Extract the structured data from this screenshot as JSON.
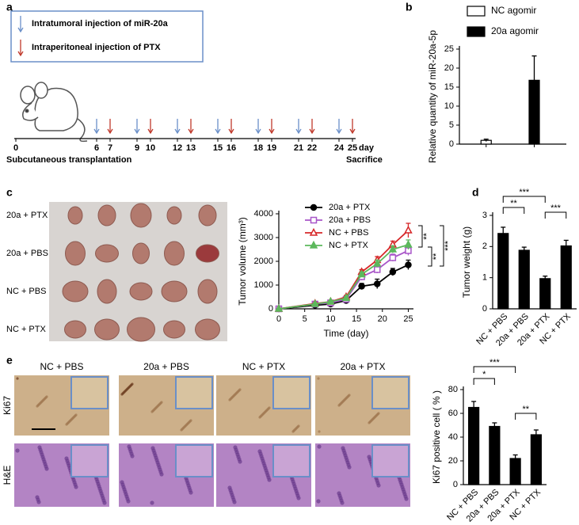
{
  "panel_labels": [
    "a",
    "b",
    "c",
    "d",
    "e"
  ],
  "timeline": {
    "legend": [
      "Intratumoral injection of miR-20a",
      "Intraperitoneal injection of PTX"
    ],
    "days": [
      0,
      6,
      7,
      9,
      10,
      12,
      13,
      15,
      16,
      18,
      19,
      21,
      22,
      24,
      25
    ],
    "unit": "day",
    "start_label": "Subcutaneous transplantation",
    "end_label": "Sacrifice",
    "mir20a_days": [
      6,
      9,
      12,
      15,
      18,
      21,
      24
    ],
    "ptx_days": [
      7,
      10,
      13,
      16,
      19,
      22,
      25
    ],
    "mir20a_color": "#6a8fc8",
    "ptx_color": "#c0392b"
  },
  "tumor_photo": {
    "rows": [
      "20a + PTX",
      "20a + PBS",
      "NC + PBS",
      "NC + PTX"
    ]
  },
  "histology": {
    "columns": [
      "NC + PBS",
      "20a + PBS",
      "NC + PTX",
      "20a + PTX"
    ],
    "rows": [
      "Ki67",
      "H&E"
    ]
  },
  "chart_data": [
    {
      "type": "bar",
      "ylabel": "Relative quantity of miR-20a-5p",
      "categories": [
        null
      ],
      "series": [
        {
          "name": "NC agomir",
          "color": "#ffffff",
          "values": [
            1.0
          ],
          "errors": [
            0.3
          ]
        },
        {
          "name": "20a agomir",
          "color": "#000000",
          "values": [
            16.8
          ],
          "errors": [
            6.4
          ]
        }
      ],
      "ylim": [
        0,
        25
      ],
      "yticks": [
        0,
        5,
        10,
        15,
        20,
        25
      ],
      "legend": "top"
    },
    {
      "type": "line",
      "xlabel": "Time (day)",
      "ylabel": "Tumor volume (mm³)",
      "x": [
        0,
        7,
        10,
        13,
        16,
        19,
        22,
        25
      ],
      "series": [
        {
          "name": "20a + PTX",
          "color": "#000000",
          "marker": "circle",
          "values": [
            0,
            150,
            200,
            350,
            950,
            1050,
            1550,
            1850
          ],
          "errors": [
            0,
            40,
            50,
            60,
            120,
            200,
            150,
            200
          ]
        },
        {
          "name": "20a + PBS",
          "color": "#a855c8",
          "marker": "square-open",
          "values": [
            0,
            200,
            250,
            400,
            1350,
            1650,
            2150,
            2450
          ],
          "errors": [
            0,
            40,
            50,
            60,
            150,
            150,
            150,
            200
          ]
        },
        {
          "name": "NC + PBS",
          "color": "#d62728",
          "marker": "triangle-open",
          "values": [
            0,
            220,
            300,
            500,
            1550,
            2050,
            2700,
            3300
          ],
          "errors": [
            0,
            40,
            50,
            60,
            100,
            150,
            150,
            300
          ]
        },
        {
          "name": "NC + PTX",
          "color": "#5cb85c",
          "marker": "triangle",
          "values": [
            0,
            200,
            300,
            450,
            1450,
            1900,
            2500,
            2700
          ],
          "errors": [
            0,
            40,
            50,
            60,
            100,
            150,
            150,
            200
          ]
        }
      ],
      "xlim": [
        0,
        26
      ],
      "xticks": [
        0,
        5,
        10,
        15,
        20,
        25
      ],
      "ylim": [
        0,
        4000
      ],
      "yticks": [
        0,
        1000,
        2000,
        3000,
        4000
      ],
      "annotations": [
        "**",
        "**",
        "***"
      ]
    },
    {
      "type": "bar",
      "ylabel": "Tumor weight (g)",
      "categories": [
        "NC + PBS",
        "20a + PBS",
        "20a + PTX",
        "NC + PTX"
      ],
      "values": [
        2.42,
        1.88,
        0.97,
        2.02
      ],
      "errors": [
        0.2,
        0.1,
        0.08,
        0.18
      ],
      "color": "#000000",
      "ylim": [
        0,
        3
      ],
      "yticks": [
        0,
        1,
        2,
        3
      ],
      "annotations": [
        "**",
        "***",
        "***"
      ]
    },
    {
      "type": "bar",
      "ylabel": "Ki67 positive cell ( % )",
      "categories": [
        "NC + PBS",
        "20a + PBS",
        "20a + PTX",
        "NC + PTX"
      ],
      "values": [
        65,
        49,
        22,
        42
      ],
      "errors": [
        5,
        3,
        3,
        4
      ],
      "color": "#000000",
      "ylim": [
        0,
        80
      ],
      "yticks": [
        0,
        20,
        40,
        60,
        80
      ],
      "annotations": [
        "*",
        "***",
        "**"
      ]
    }
  ]
}
